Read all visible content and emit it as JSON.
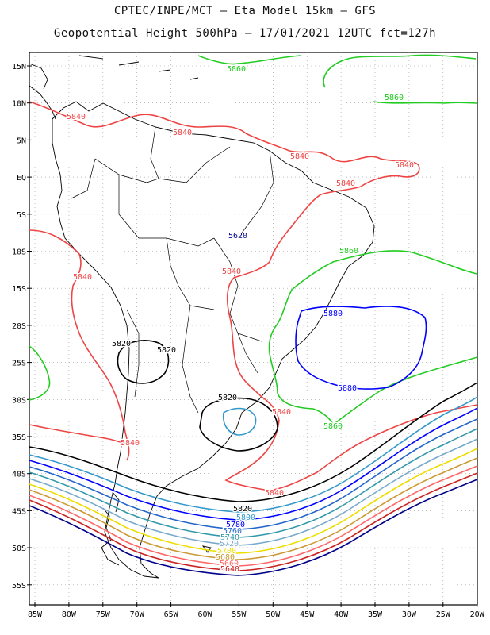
{
  "header": {
    "line1": "CPTEC/INPE/MCT –  Eta Model 15km – GFS",
    "line2": "Geopotential Height 500hPa – 17/01/2021 12UTC fct=127h"
  },
  "axes": {
    "lat_labels": [
      "15N",
      "10N",
      "5N",
      "EQ",
      "5S",
      "10S",
      "15S",
      "20S",
      "25S",
      "30S",
      "35S",
      "40S",
      "45S",
      "50S",
      "55S"
    ],
    "lon_labels": [
      "85W",
      "80W",
      "75W",
      "70W",
      "65W",
      "60W",
      "55W",
      "50W",
      "45W",
      "40W",
      "35W",
      "30W",
      "25W",
      "20W"
    ]
  },
  "contours": {
    "colors": {
      "5860": "#22cc22",
      "5840": "#ee4444",
      "5820": "#000000",
      "5800": "#3399cc",
      "5780": "#0000ff",
      "5760": "#2266cc",
      "5740": "#3399aa",
      "5720": "#77aacc",
      "5700": "#eedd00",
      "5680": "#cc9933",
      "5660": "#ff6666",
      "5640": "#cc2222",
      "5620": "#000088"
    },
    "labels": [
      {
        "text": "5860",
        "color": "#22cc22"
      },
      {
        "text": "5860",
        "color": "#22cc22"
      },
      {
        "text": "5860",
        "color": "#22cc22"
      },
      {
        "text": "5860",
        "color": "#22cc22"
      },
      {
        "text": "5840",
        "color": "#ee4444"
      },
      {
        "text": "5840",
        "color": "#ee4444"
      },
      {
        "text": "5840",
        "color": "#ee4444"
      },
      {
        "text": "5840",
        "color": "#ee4444"
      },
      {
        "text": "5840",
        "color": "#ee4444"
      },
      {
        "text": "5840",
        "color": "#ee4444"
      },
      {
        "text": "5840",
        "color": "#ee4444"
      },
      {
        "text": "5840",
        "color": "#ee4444"
      },
      {
        "text": "5840",
        "color": "#ee4444"
      },
      {
        "text": "5840",
        "color": "#ee4444"
      },
      {
        "text": "5880",
        "color": "#0000ff"
      },
      {
        "text": "5880",
        "color": "#0000ff"
      },
      {
        "text": "5820",
        "color": "#000000"
      },
      {
        "text": "5820",
        "color": "#000000"
      },
      {
        "text": "5820",
        "color": "#000000"
      },
      {
        "text": "5820",
        "color": "#000000"
      },
      {
        "text": "5800",
        "color": "#3399cc"
      },
      {
        "text": "5780",
        "color": "#0000ff"
      },
      {
        "text": "5760",
        "color": "#2266cc"
      },
      {
        "text": "5740",
        "color": "#3399aa"
      },
      {
        "text": "5720",
        "color": "#77aacc"
      },
      {
        "text": "5700",
        "color": "#eedd00"
      },
      {
        "text": "5680",
        "color": "#cc9933"
      },
      {
        "text": "5660",
        "color": "#ff6666"
      },
      {
        "text": "5640",
        "color": "#cc2222"
      },
      {
        "text": "5620",
        "color": "#000088"
      }
    ]
  }
}
